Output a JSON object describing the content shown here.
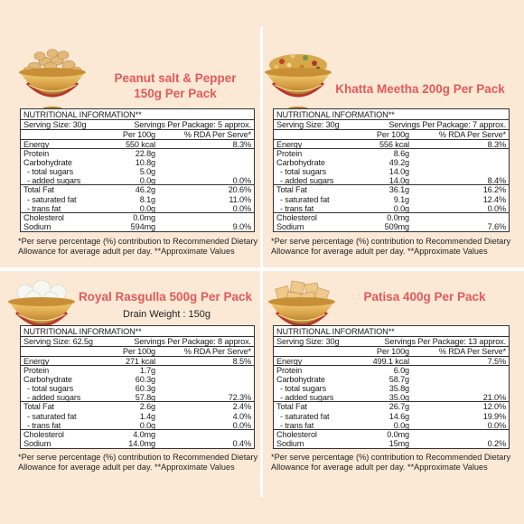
{
  "colors": {
    "background": "#fbe9d6",
    "title": "#e2595a",
    "bowl_gold": "#d9a347",
    "bowl_red": "#b6372d"
  },
  "common": {
    "heading": "NUTRITIONAL INFORMATION**",
    "col_per100": "Per 100g",
    "col_rda": "% RDA Per Serve*",
    "footnote_1": "*Per serve percentage (%) contribution to Recommended  Dietary",
    "footnote_2": "Allowance for average adult per day. **Approximate Values"
  },
  "products": [
    {
      "title_line1": "Peanut salt & Pepper",
      "title_line2": "150g Per Pack",
      "serving_size": "Serving Size: 30g",
      "servings": "Servings Per Package: 5 approx.",
      "bowl_icon": "peanut-bowl-icon",
      "rows": [
        {
          "name": "Energy",
          "value": "550 kcal",
          "rda": "8.3%"
        },
        {
          "name": "Protein",
          "value": "22.8g",
          "rda": ""
        },
        {
          "name": "Carbohydrate",
          "value": "10.8g",
          "rda": ""
        },
        {
          "name": "- total sugars",
          "value": "5.0g",
          "rda": ""
        },
        {
          "name": "- added sugars",
          "value": "0.0g",
          "rda": "0.0%"
        },
        {
          "name": "Total Fat",
          "value": "46.2g",
          "rda": "20.6%"
        },
        {
          "name": "- saturated fat",
          "value": "8.1g",
          "rda": "11.0%"
        },
        {
          "name": "- trans fat",
          "value": "0.0g",
          "rda": "0.0%"
        },
        {
          "name": "Cholesterol",
          "value": "0.0mg",
          "rda": ""
        },
        {
          "name": "Sodium",
          "value": "594mg",
          "rda": "9.0%"
        }
      ]
    },
    {
      "title_line1": "Khatta Meetha 200g Per Pack",
      "title_line2": "",
      "serving_size": "Serving Size: 30g",
      "servings": "Servings Per Package: 7 approx.",
      "bowl_icon": "namkeen-bowl-icon",
      "rows": [
        {
          "name": "Energy",
          "value": "556 kcal",
          "rda": "8.3%"
        },
        {
          "name": "Protein",
          "value": "8.6g",
          "rda": ""
        },
        {
          "name": "Carbohydrate",
          "value": "49.2g",
          "rda": ""
        },
        {
          "name": "- total sugars",
          "value": "14.0g",
          "rda": ""
        },
        {
          "name": "- added sugars",
          "value": "14.0g",
          "rda": "8.4%"
        },
        {
          "name": "Total Fat",
          "value": "36.1g",
          "rda": "16.2%"
        },
        {
          "name": "- saturated fat",
          "value": "9.1g",
          "rda": "12.4%"
        },
        {
          "name": "- trans fat",
          "value": "0.0g",
          "rda": "0.0%"
        },
        {
          "name": "Cholesterol",
          "value": "0.0mg",
          "rda": ""
        },
        {
          "name": "Sodium",
          "value": "509mg",
          "rda": "7.6%"
        }
      ]
    },
    {
      "title_line1": "Royal Rasgulla 500g Per Pack",
      "title_line2": "",
      "drain_weight": "Drain Weight : 150g",
      "serving_size": "Serving Size: 62.5g",
      "servings": "Servings Per Package: 8 approx.",
      "bowl_icon": "rasgulla-bowl-icon",
      "rows": [
        {
          "name": "Energy",
          "value": "271 kcal",
          "rda": "8.5%"
        },
        {
          "name": "Protein",
          "value": "1.7g",
          "rda": ""
        },
        {
          "name": "Carbohydrate",
          "value": "60.3g",
          "rda": ""
        },
        {
          "name": "- total sugars",
          "value": "60.3g",
          "rda": ""
        },
        {
          "name": "- added sugars",
          "value": "57.8g",
          "rda": "72.3%"
        },
        {
          "name": "Total Fat",
          "value": "2.6g",
          "rda": "2.4%"
        },
        {
          "name": "- saturated fat",
          "value": "1.4g",
          "rda": "4.0%"
        },
        {
          "name": "- trans fat",
          "value": "0.0g",
          "rda": "0.0%"
        },
        {
          "name": "Cholesterol",
          "value": "4.0mg",
          "rda": ""
        },
        {
          "name": "Sodium",
          "value": "14.0mg",
          "rda": "0.4%"
        }
      ]
    },
    {
      "title_line1": "Patisa 400g Per Pack",
      "title_line2": "",
      "serving_size": "Serving Size: 30g",
      "servings": "Servings Per Package: 13 approx.",
      "bowl_icon": "patisa-bowl-icon",
      "rows": [
        {
          "name": "Energy",
          "value": "499.1 kcal",
          "rda": "7.5%"
        },
        {
          "name": "Protein",
          "value": "6.0g",
          "rda": ""
        },
        {
          "name": "Carbohydrate",
          "value": "58.7g",
          "rda": ""
        },
        {
          "name": "- total sugars",
          "value": "35.8g",
          "rda": ""
        },
        {
          "name": "- added sugars",
          "value": "35.0g",
          "rda": "21.0%"
        },
        {
          "name": "Total Fat",
          "value": "26.7g",
          "rda": "12.0%"
        },
        {
          "name": "- saturated fat",
          "value": "14.6g",
          "rda": "19.9%"
        },
        {
          "name": "- trans fat",
          "value": "0.0g",
          "rda": "0.0%"
        },
        {
          "name": "Cholesterol",
          "value": "0.0mg",
          "rda": ""
        },
        {
          "name": "Sodium",
          "value": "15mg",
          "rda": "0.2%"
        }
      ]
    }
  ]
}
